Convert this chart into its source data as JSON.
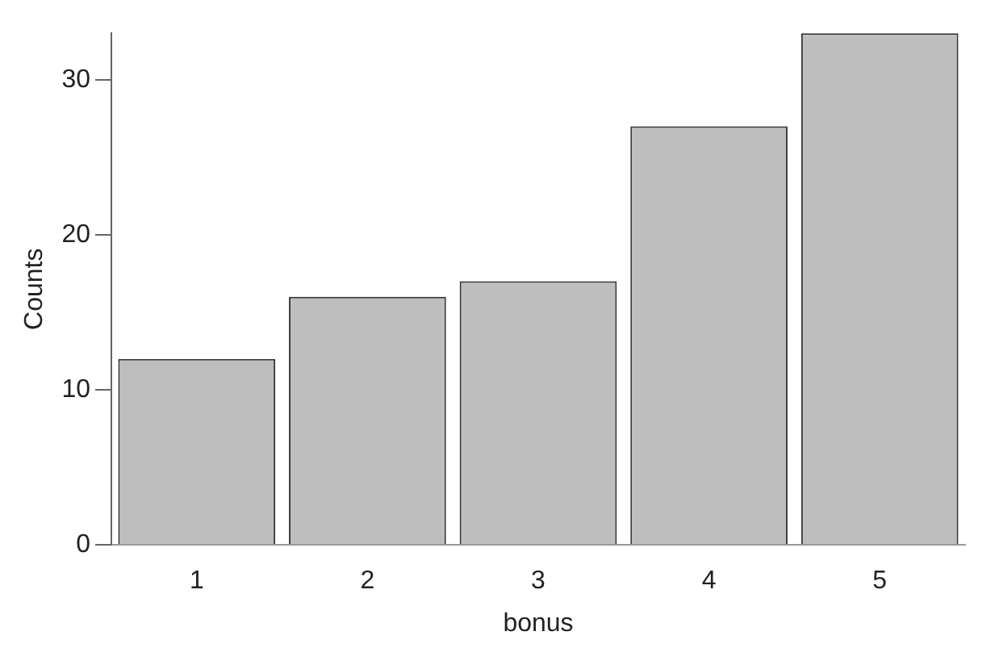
{
  "chart_data": {
    "type": "bar",
    "xlabel": "bonus",
    "ylabel": "Counts",
    "categories": [
      "1",
      "2",
      "3",
      "4",
      "5"
    ],
    "values": [
      12,
      16,
      17,
      27,
      33
    ],
    "color": "#bebebe",
    "ylim": [
      0,
      33
    ],
    "yticks": [
      0,
      10,
      20,
      30
    ],
    "grid": false
  }
}
